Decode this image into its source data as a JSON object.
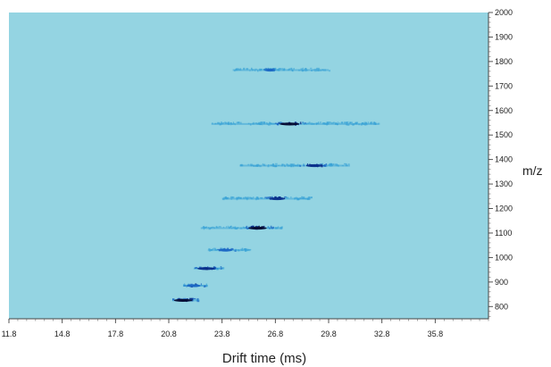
{
  "chart_data": {
    "type": "heatmap",
    "title": "",
    "xlabel": "Drift time (ms)",
    "ylabel": "m/z",
    "xlim": [
      11.8,
      38.8
    ],
    "ylim": [
      750,
      2000
    ],
    "x_ticks": [
      "11.8",
      "14.8",
      "17.8",
      "20.8",
      "23.8",
      "26.8",
      "29.8",
      "32.8",
      "35.8"
    ],
    "y_ticks": [
      "800",
      "900",
      "1000",
      "1100",
      "1200",
      "1300",
      "1400",
      "1500",
      "1600",
      "1700",
      "1800",
      "1900",
      "2000"
    ],
    "background_color": "#94d4e2",
    "colormap": [
      "#3aa3d6",
      "#1a66c4",
      "#0b2f8a",
      "#050a30"
    ],
    "grid": false,
    "bands": [
      {
        "mz": 825,
        "x_start": 21.0,
        "x_end": 22.5,
        "peak_x": 21.6,
        "peak_intensity": 0.9
      },
      {
        "mz": 885,
        "x_start": 21.6,
        "x_end": 23.0,
        "peak_x": 22.2,
        "peak_intensity": 0.6
      },
      {
        "mz": 955,
        "x_start": 22.2,
        "x_end": 23.8,
        "peak_x": 22.9,
        "peak_intensity": 0.85
      },
      {
        "mz": 1030,
        "x_start": 23.0,
        "x_end": 25.4,
        "peak_x": 24.0,
        "peak_intensity": 0.55
      },
      {
        "mz": 1120,
        "x_start": 22.6,
        "x_end": 27.2,
        "peak_x": 25.8,
        "peak_intensity": 0.9
      },
      {
        "mz": 1240,
        "x_start": 23.8,
        "x_end": 28.8,
        "peak_x": 26.9,
        "peak_intensity": 0.75
      },
      {
        "mz": 1375,
        "x_start": 24.8,
        "x_end": 31.0,
        "peak_x": 29.0,
        "peak_intensity": 0.8
      },
      {
        "mz": 1545,
        "x_start": 23.2,
        "x_end": 32.6,
        "peak_x": 27.6,
        "peak_intensity": 1.0
      },
      {
        "mz": 1765,
        "x_start": 24.4,
        "x_end": 29.8,
        "peak_x": 26.5,
        "peak_intensity": 0.4
      }
    ]
  }
}
